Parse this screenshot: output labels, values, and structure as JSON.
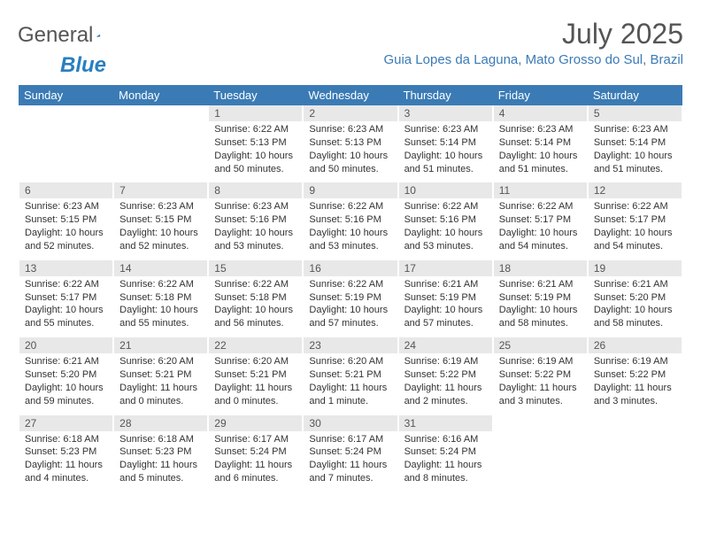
{
  "logo": {
    "text1": "General",
    "text2": "Blue"
  },
  "title": "July 2025",
  "location": "Guia Lopes da Laguna, Mato Grosso do Sul, Brazil",
  "colors": {
    "header_bg": "#3b7bb5",
    "daynum_bg": "#e8e8e8",
    "logo_blue": "#2a7fbf",
    "location_color": "#3b7bb5"
  },
  "weekdays": [
    "Sunday",
    "Monday",
    "Tuesday",
    "Wednesday",
    "Thursday",
    "Friday",
    "Saturday"
  ],
  "weeks": [
    [
      null,
      null,
      {
        "day": "1",
        "sunrise": "6:22 AM",
        "sunset": "5:13 PM",
        "daylight": "10 hours and 50 minutes."
      },
      {
        "day": "2",
        "sunrise": "6:23 AM",
        "sunset": "5:13 PM",
        "daylight": "10 hours and 50 minutes."
      },
      {
        "day": "3",
        "sunrise": "6:23 AM",
        "sunset": "5:14 PM",
        "daylight": "10 hours and 51 minutes."
      },
      {
        "day": "4",
        "sunrise": "6:23 AM",
        "sunset": "5:14 PM",
        "daylight": "10 hours and 51 minutes."
      },
      {
        "day": "5",
        "sunrise": "6:23 AM",
        "sunset": "5:14 PM",
        "daylight": "10 hours and 51 minutes."
      }
    ],
    [
      {
        "day": "6",
        "sunrise": "6:23 AM",
        "sunset": "5:15 PM",
        "daylight": "10 hours and 52 minutes."
      },
      {
        "day": "7",
        "sunrise": "6:23 AM",
        "sunset": "5:15 PM",
        "daylight": "10 hours and 52 minutes."
      },
      {
        "day": "8",
        "sunrise": "6:23 AM",
        "sunset": "5:16 PM",
        "daylight": "10 hours and 53 minutes."
      },
      {
        "day": "9",
        "sunrise": "6:22 AM",
        "sunset": "5:16 PM",
        "daylight": "10 hours and 53 minutes."
      },
      {
        "day": "10",
        "sunrise": "6:22 AM",
        "sunset": "5:16 PM",
        "daylight": "10 hours and 53 minutes."
      },
      {
        "day": "11",
        "sunrise": "6:22 AM",
        "sunset": "5:17 PM",
        "daylight": "10 hours and 54 minutes."
      },
      {
        "day": "12",
        "sunrise": "6:22 AM",
        "sunset": "5:17 PM",
        "daylight": "10 hours and 54 minutes."
      }
    ],
    [
      {
        "day": "13",
        "sunrise": "6:22 AM",
        "sunset": "5:17 PM",
        "daylight": "10 hours and 55 minutes."
      },
      {
        "day": "14",
        "sunrise": "6:22 AM",
        "sunset": "5:18 PM",
        "daylight": "10 hours and 55 minutes."
      },
      {
        "day": "15",
        "sunrise": "6:22 AM",
        "sunset": "5:18 PM",
        "daylight": "10 hours and 56 minutes."
      },
      {
        "day": "16",
        "sunrise": "6:22 AM",
        "sunset": "5:19 PM",
        "daylight": "10 hours and 57 minutes."
      },
      {
        "day": "17",
        "sunrise": "6:21 AM",
        "sunset": "5:19 PM",
        "daylight": "10 hours and 57 minutes."
      },
      {
        "day": "18",
        "sunrise": "6:21 AM",
        "sunset": "5:19 PM",
        "daylight": "10 hours and 58 minutes."
      },
      {
        "day": "19",
        "sunrise": "6:21 AM",
        "sunset": "5:20 PM",
        "daylight": "10 hours and 58 minutes."
      }
    ],
    [
      {
        "day": "20",
        "sunrise": "6:21 AM",
        "sunset": "5:20 PM",
        "daylight": "10 hours and 59 minutes."
      },
      {
        "day": "21",
        "sunrise": "6:20 AM",
        "sunset": "5:21 PM",
        "daylight": "11 hours and 0 minutes."
      },
      {
        "day": "22",
        "sunrise": "6:20 AM",
        "sunset": "5:21 PM",
        "daylight": "11 hours and 0 minutes."
      },
      {
        "day": "23",
        "sunrise": "6:20 AM",
        "sunset": "5:21 PM",
        "daylight": "11 hours and 1 minute."
      },
      {
        "day": "24",
        "sunrise": "6:19 AM",
        "sunset": "5:22 PM",
        "daylight": "11 hours and 2 minutes."
      },
      {
        "day": "25",
        "sunrise": "6:19 AM",
        "sunset": "5:22 PM",
        "daylight": "11 hours and 3 minutes."
      },
      {
        "day": "26",
        "sunrise": "6:19 AM",
        "sunset": "5:22 PM",
        "daylight": "11 hours and 3 minutes."
      }
    ],
    [
      {
        "day": "27",
        "sunrise": "6:18 AM",
        "sunset": "5:23 PM",
        "daylight": "11 hours and 4 minutes."
      },
      {
        "day": "28",
        "sunrise": "6:18 AM",
        "sunset": "5:23 PM",
        "daylight": "11 hours and 5 minutes."
      },
      {
        "day": "29",
        "sunrise": "6:17 AM",
        "sunset": "5:24 PM",
        "daylight": "11 hours and 6 minutes."
      },
      {
        "day": "30",
        "sunrise": "6:17 AM",
        "sunset": "5:24 PM",
        "daylight": "11 hours and 7 minutes."
      },
      {
        "day": "31",
        "sunrise": "6:16 AM",
        "sunset": "5:24 PM",
        "daylight": "11 hours and 8 minutes."
      },
      null,
      null
    ]
  ],
  "labels": {
    "sunrise": "Sunrise:",
    "sunset": "Sunset:",
    "daylight": "Daylight:"
  }
}
